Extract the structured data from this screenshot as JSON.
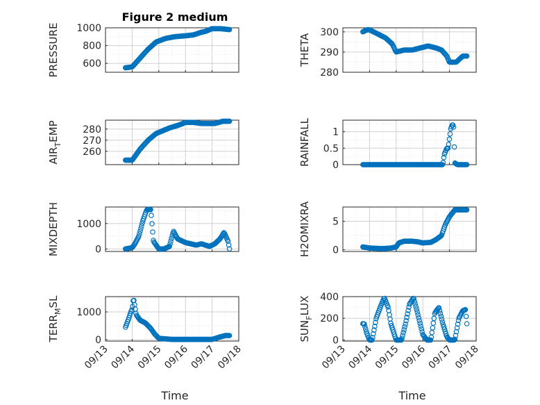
{
  "figure": {
    "title": "Figure 2 medium",
    "xlabel": "Time",
    "marker_color": "#0072BD",
    "x_ticks": [
      "09/13",
      "09/14",
      "09/15",
      "09/16",
      "09/17",
      "09/18"
    ]
  },
  "chart_data": [
    {
      "type": "scatter",
      "ylabel": "PRESSURE",
      "xlim": [
        0,
        5
      ],
      "ylim": [
        500,
        1000
      ],
      "yticks": [
        600,
        800,
        1000
      ],
      "x_key": [
        0.75,
        1.0,
        1.3,
        1.6,
        1.9,
        2.25,
        2.6,
        3.0,
        3.3,
        3.6,
        3.75,
        4.0,
        4.3,
        4.65
      ],
      "y_key": [
        550,
        560,
        660,
        760,
        840,
        880,
        900,
        910,
        920,
        950,
        960,
        990,
        990,
        980
      ]
    },
    {
      "type": "scatter",
      "ylabel": "THETA",
      "xlim": [
        0,
        5
      ],
      "ylim": [
        280,
        302
      ],
      "yticks": [
        280,
        290,
        300
      ],
      "x_key": [
        0.75,
        0.9,
        1.0,
        1.3,
        1.6,
        1.85,
        2.0,
        2.3,
        2.6,
        2.9,
        3.2,
        3.5,
        3.7,
        3.9,
        4.0,
        4.25,
        4.5,
        4.65
      ],
      "y_key": [
        300,
        301,
        301,
        299,
        297,
        294,
        290,
        291,
        291,
        292,
        293,
        292,
        291,
        288,
        285,
        285,
        288,
        288
      ]
    },
    {
      "type": "scatter",
      "ylabel": "AIR_TEMP",
      "ylabel_parts": [
        "AIR",
        "T",
        "EMP"
      ],
      "xlim": [
        0,
        5
      ],
      "ylim": [
        248,
        288
      ],
      "yticks": [
        260,
        270,
        280
      ],
      "x_key": [
        0.75,
        0.9,
        1.0,
        1.3,
        1.6,
        1.9,
        2.1,
        2.4,
        2.8,
        3.0,
        3.3,
        3.6,
        3.8,
        4.1,
        4.4,
        4.65
      ],
      "y_key": [
        252,
        252,
        252,
        262,
        270,
        276,
        278,
        281,
        284,
        286,
        286,
        285,
        285,
        285,
        287,
        287
      ]
    },
    {
      "type": "scatter",
      "ylabel": "RAINFALL",
      "xlim": [
        0,
        5
      ],
      "ylim": [
        0,
        1.35
      ],
      "yticks": [
        0,
        0.5,
        1
      ],
      "x_key": [
        0.75,
        1.5,
        2.5,
        3.5,
        3.75,
        3.8,
        3.9,
        3.95,
        4.05,
        4.1,
        4.15,
        4.2,
        4.3,
        4.65
      ],
      "y_key": [
        0,
        0,
        0,
        0,
        0,
        0.3,
        0.5,
        0.5,
        1.1,
        1.2,
        1.2,
        0.05,
        0,
        0
      ]
    },
    {
      "type": "scatter",
      "ylabel": "MIXDEPTH",
      "xlim": [
        0,
        5
      ],
      "ylim": [
        -100,
        1650
      ],
      "yticks": [
        0,
        1000
      ],
      "x_key": [
        0.75,
        1.0,
        1.1,
        1.25,
        1.4,
        1.55,
        1.7,
        1.8,
        2.0,
        2.2,
        2.4,
        2.55,
        2.7,
        3.0,
        3.2,
        3.4,
        3.6,
        3.9,
        4.1,
        4.3,
        4.45,
        4.6,
        4.65
      ],
      "y_key": [
        0,
        50,
        200,
        500,
        1100,
        1550,
        1550,
        300,
        0,
        0,
        100,
        700,
        400,
        250,
        200,
        150,
        200,
        100,
        200,
        400,
        650,
        300,
        0
      ]
    },
    {
      "type": "scatter",
      "ylabel": "H2OMIXRA",
      "xlim": [
        0,
        5
      ],
      "ylim": [
        -0.3,
        7.5
      ],
      "yticks": [
        0,
        5
      ],
      "x_key": [
        0.75,
        1.0,
        1.5,
        1.8,
        2.0,
        2.1,
        2.3,
        2.6,
        2.8,
        3.0,
        3.3,
        3.5,
        3.7,
        3.85,
        4.0,
        4.2,
        4.4,
        4.65
      ],
      "y_key": [
        0.5,
        0.3,
        0.2,
        0.3,
        0.5,
        1.2,
        1.5,
        1.5,
        1.4,
        1.2,
        1.3,
        1.8,
        2.5,
        4.5,
        5.8,
        7,
        7,
        7
      ]
    },
    {
      "type": "scatter",
      "ylabel": "TERR_MSL",
      "ylabel_parts": [
        "TERR",
        "M",
        "SL"
      ],
      "xlim": [
        0,
        5
      ],
      "ylim": [
        -50,
        1550
      ],
      "yticks": [
        0,
        1000
      ],
      "x_key": [
        0.75,
        0.85,
        0.95,
        1.0,
        1.05,
        1.15,
        1.3,
        1.5,
        1.7,
        1.85,
        2.0,
        2.5,
        3.0,
        3.5,
        4.0,
        4.3,
        4.5,
        4.65
      ],
      "y_key": [
        450,
        700,
        1000,
        1100,
        1500,
        900,
        700,
        600,
        400,
        200,
        50,
        10,
        10,
        10,
        10,
        100,
        150,
        150
      ]
    },
    {
      "type": "scatter",
      "ylabel": "SUN_FLUX",
      "ylabel_parts": [
        "SUN",
        "F",
        "LUX"
      ],
      "xlim": [
        0,
        5
      ],
      "ylim": [
        -10,
        400
      ],
      "yticks": [
        0,
        200,
        400
      ],
      "x_key": [
        0.75,
        0.8,
        0.9,
        1.0,
        1.1,
        1.25,
        1.4,
        1.55,
        1.7,
        1.8,
        2.0,
        2.2,
        2.35,
        2.5,
        2.65,
        2.8,
        3.0,
        3.15,
        3.3,
        3.45,
        3.6,
        3.75,
        3.9,
        4.0,
        4.2,
        4.35,
        4.5,
        4.6,
        4.65
      ],
      "y_key": [
        150,
        150,
        60,
        0,
        0,
        200,
        300,
        390,
        300,
        150,
        0,
        0,
        150,
        330,
        390,
        250,
        50,
        0,
        0,
        250,
        300,
        150,
        30,
        0,
        0,
        200,
        270,
        280,
        150
      ]
    }
  ]
}
